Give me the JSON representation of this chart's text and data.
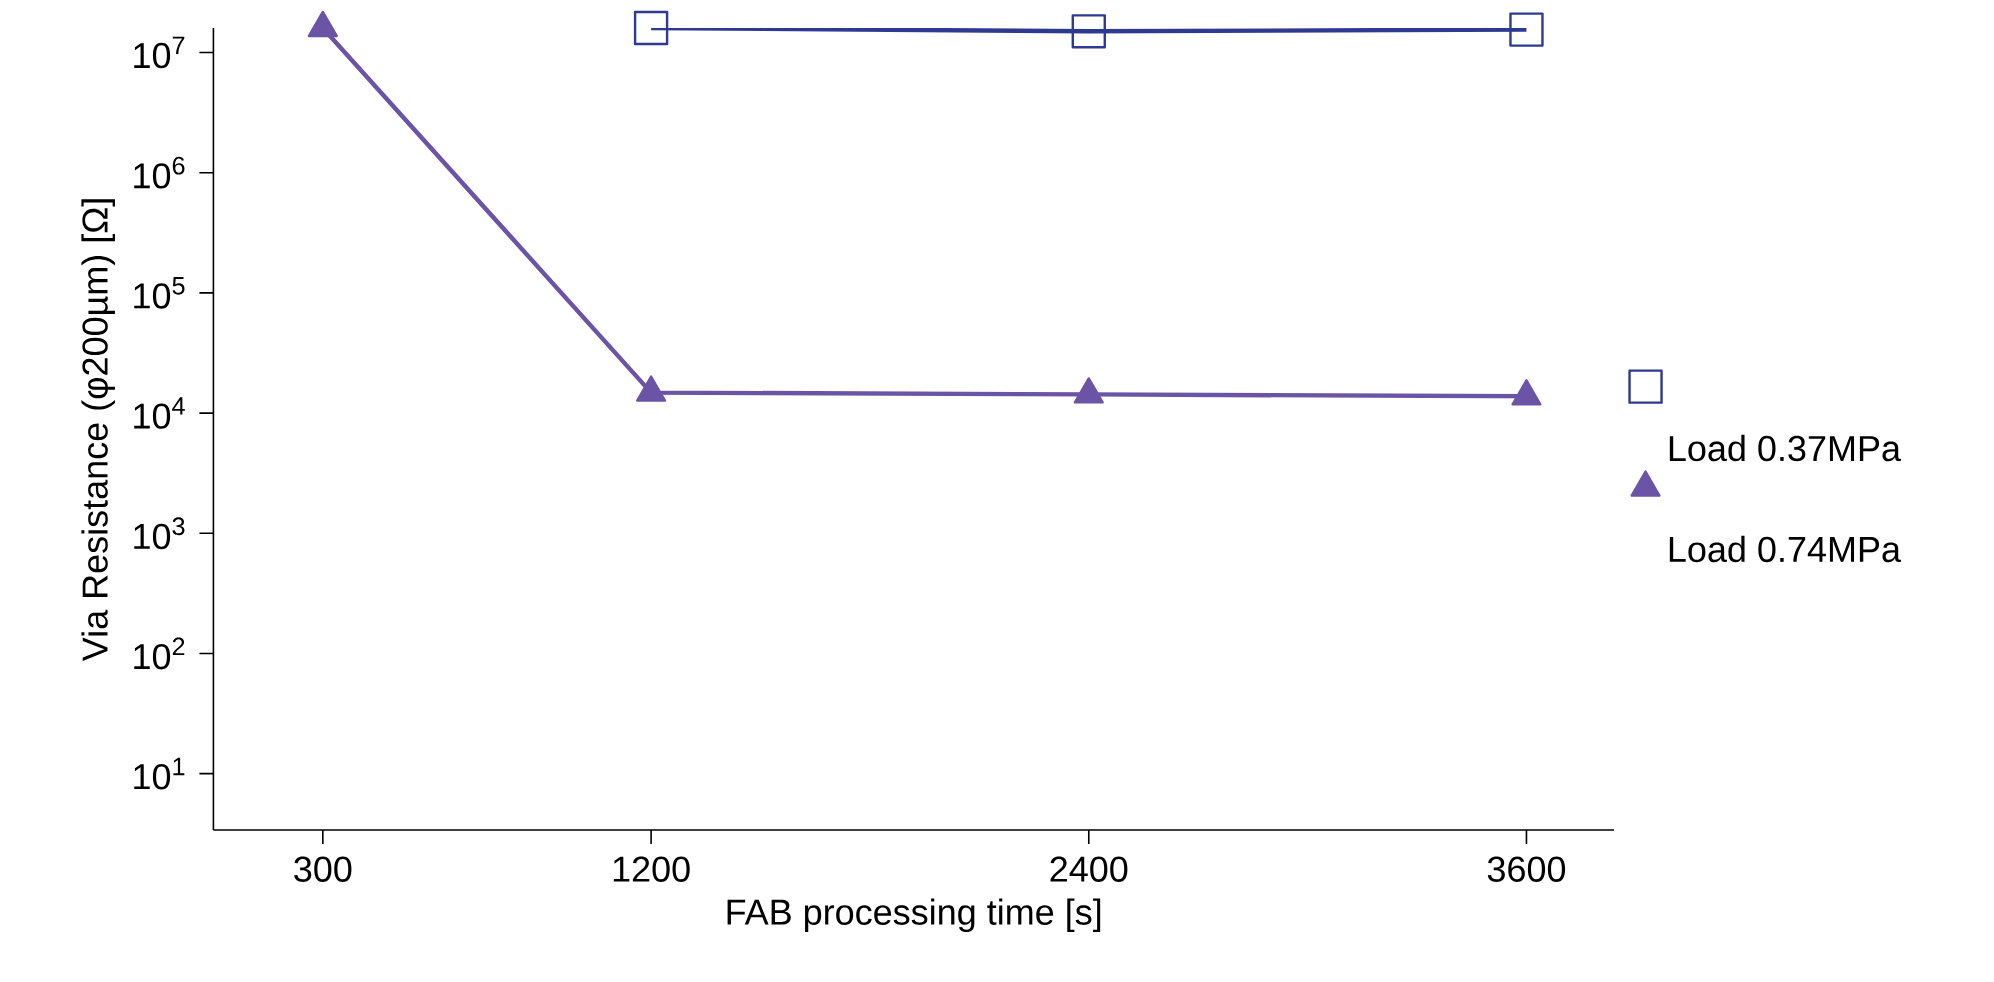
{
  "chart_data": {
    "type": "line",
    "xlabel": "FAB processing time [s]",
    "ylabel": "Via Resistance (φ200µm) [Ω]",
    "log": "y",
    "grid": false,
    "legend": "right",
    "line_style": "solid",
    "xlim": [
      0,
      3840
    ],
    "xticks": [
      300,
      1200,
      2400,
      3600
    ],
    "ylim": [
      3.4,
      16000000
    ],
    "yticks": [
      {
        "value": 10,
        "label": "10$^{1}$"
      },
      {
        "value": 100,
        "label": "10$^{2}$"
      },
      {
        "value": 1000,
        "label": "10$^{3}$"
      },
      {
        "value": 10000,
        "label": "10$^{4}$"
      },
      {
        "value": 100000,
        "label": "10$^{5}$"
      },
      {
        "value": 1000000,
        "label": "10$^{6}$"
      },
      {
        "value": 10000000,
        "label": "10$^{7}$"
      }
    ],
    "series": [
      {
        "name": "Load 0.37MPa",
        "color": "#2e3a91",
        "marker": "square",
        "x": [
          1200,
          2400,
          3600
        ],
        "values": [
          16000000,
          15000000,
          15500000
        ]
      },
      {
        "name": "Load 0.74MPa",
        "color": "#6b54a6",
        "marker": "triangle",
        "x": [
          300,
          1200,
          2400,
          3600
        ],
        "values": [
          16000000,
          14800,
          14300,
          13800
        ]
      }
    ]
  }
}
